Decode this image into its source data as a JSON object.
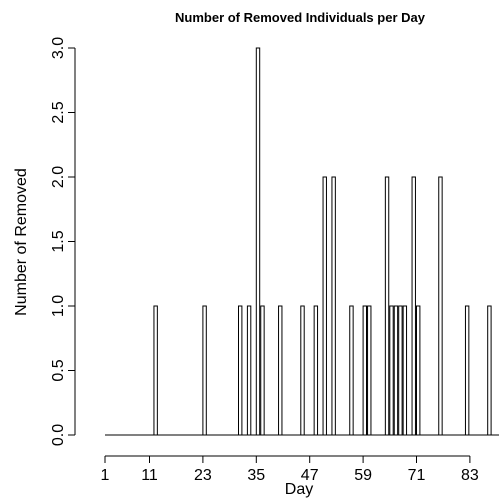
{
  "chart_data": {
    "type": "bar",
    "title": "Number of Removed Individuals per Day",
    "xlabel": "Day",
    "ylabel": "Number of Removed",
    "x_tick_labels": [
      "1",
      "11",
      "23",
      "35",
      "47",
      "59",
      "71",
      "83"
    ],
    "y_tick_labels": [
      "0.0",
      "0.5",
      "1.0",
      "1.5",
      "2.0",
      "2.5",
      "3.0"
    ],
    "ylim": [
      0,
      3
    ],
    "xlim": [
      1,
      89
    ],
    "grid": false,
    "bars": [
      {
        "day": 12,
        "value": 1
      },
      {
        "day": 23,
        "value": 1
      },
      {
        "day": 31,
        "value": 1
      },
      {
        "day": 33,
        "value": 1
      },
      {
        "day": 35,
        "value": 3
      },
      {
        "day": 36,
        "value": 1
      },
      {
        "day": 40,
        "value": 1
      },
      {
        "day": 45,
        "value": 1
      },
      {
        "day": 48,
        "value": 1
      },
      {
        "day": 50,
        "value": 2
      },
      {
        "day": 52,
        "value": 2
      },
      {
        "day": 56,
        "value": 1
      },
      {
        "day": 59,
        "value": 1
      },
      {
        "day": 60,
        "value": 1
      },
      {
        "day": 64,
        "value": 2
      },
      {
        "day": 65,
        "value": 1
      },
      {
        "day": 66,
        "value": 1
      },
      {
        "day": 67,
        "value": 1
      },
      {
        "day": 68,
        "value": 1
      },
      {
        "day": 70,
        "value": 2
      },
      {
        "day": 71,
        "value": 1
      },
      {
        "day": 76,
        "value": 2
      },
      {
        "day": 82,
        "value": 1
      },
      {
        "day": 87,
        "value": 1
      }
    ]
  }
}
